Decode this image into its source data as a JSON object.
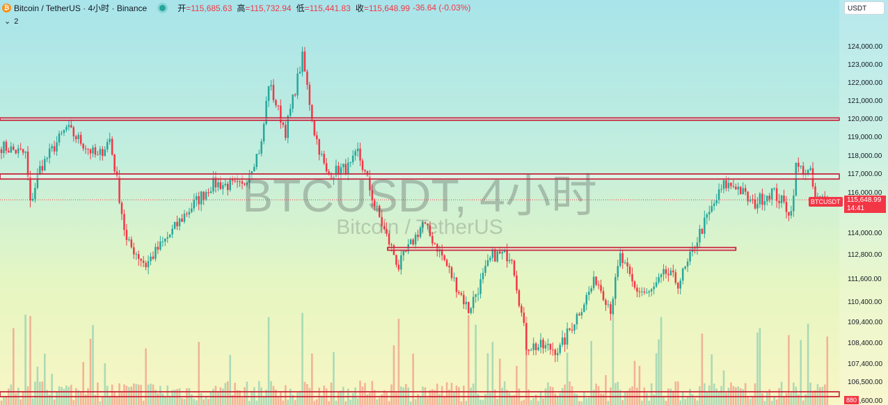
{
  "header": {
    "logo_icon": "bitcoin-icon",
    "title": "Bitcoin / TetherUS · 4小时 · Binance",
    "ohlc": [
      {
        "label": "开",
        "value": "=115,685.63"
      },
      {
        "label": "高",
        "value": "=115,732.94"
      },
      {
        "label": "低",
        "value": "=115,441.83"
      },
      {
        "label": "收",
        "value": "=115,648.99"
      },
      {
        "label": "",
        "value": "-36.64 (-0.03%)"
      }
    ]
  },
  "indicator_toggle": {
    "icon": "chevron-down-icon",
    "count": "2"
  },
  "currency": "USDT",
  "watermark": {
    "main": "BTCUSDT, 4小时",
    "sub": "Bitcoin / TetherUS"
  },
  "last_price": {
    "symbol": "BTCUSDT",
    "price": "115,648.99",
    "countdown": "14:41"
  },
  "volume_label": "880",
  "colors": {
    "up": "#26a69a",
    "down": "#f23645",
    "zone": "#c7253e"
  },
  "chart_data": {
    "type": "candlestick",
    "y_ticks": [
      {
        "label": "124,000.00",
        "v": 124000
      },
      {
        "label": "123,000.00",
        "v": 123000
      },
      {
        "label": "122,000.00",
        "v": 122000
      },
      {
        "label": "121,000.00",
        "v": 121000
      },
      {
        "label": "120,000.00",
        "v": 120000
      },
      {
        "label": "119,000.00",
        "v": 119000
      },
      {
        "label": "118,000.00",
        "v": 118000
      },
      {
        "label": "117,000.00",
        "v": 117000
      },
      {
        "label": "116,000.00",
        "v": 116000
      },
      {
        "label": "114,000.00",
        "v": 114000
      },
      {
        "label": "112,800.00",
        "v": 112800
      },
      {
        "label": "111,600.00",
        "v": 111600
      },
      {
        "label": "110,400.00",
        "v": 110400
      },
      {
        "label": "109,400.00",
        "v": 109400
      },
      {
        "label": "108,400.00",
        "v": 108400
      },
      {
        "label": "107,400.00",
        "v": 107400
      },
      {
        "label": "106,500.00",
        "v": 106500
      },
      {
        "label": "105,600.00",
        "v": 105600
      }
    ],
    "current_price": 115648.99,
    "zones": [
      {
        "from_bar": 0,
        "to_bar": 348,
        "low": 119930,
        "high": 120060
      },
      {
        "from_bar": 0,
        "to_bar": 348,
        "low": 116730,
        "high": 117000
      },
      {
        "from_bar": 161,
        "to_bar": 305,
        "low": 113050,
        "high": 113200
      }
    ],
    "path": [
      [
        0,
        118500
      ],
      [
        10,
        118100
      ],
      [
        12,
        115400
      ],
      [
        16,
        117300
      ],
      [
        27,
        119500
      ],
      [
        40,
        117900
      ],
      [
        45,
        118900
      ],
      [
        52,
        113500
      ],
      [
        60,
        112300
      ],
      [
        76,
        114900
      ],
      [
        88,
        116500
      ],
      [
        100,
        116300
      ],
      [
        108,
        118600
      ],
      [
        111,
        122000
      ],
      [
        118,
        119300
      ],
      [
        125,
        123400
      ],
      [
        130,
        119300
      ],
      [
        135,
        117000
      ],
      [
        145,
        117400
      ],
      [
        148,
        118200
      ],
      [
        155,
        115400
      ],
      [
        165,
        112200
      ],
      [
        175,
        114500
      ],
      [
        182,
        113000
      ],
      [
        194,
        110000
      ],
      [
        204,
        112800
      ],
      [
        212,
        112800
      ],
      [
        218,
        108300
      ],
      [
        232,
        108100
      ],
      [
        247,
        111600
      ],
      [
        253,
        110100
      ],
      [
        257,
        112700
      ],
      [
        263,
        111100
      ],
      [
        269,
        110800
      ],
      [
        276,
        111900
      ],
      [
        281,
        111400
      ],
      [
        285,
        112300
      ],
      [
        290,
        114000
      ],
      [
        300,
        116400
      ],
      [
        305,
        116400
      ],
      [
        312,
        115400
      ],
      [
        320,
        116100
      ],
      [
        328,
        115000
      ],
      [
        330,
        117400
      ],
      [
        336,
        117000
      ],
      [
        338,
        115600
      ],
      [
        343,
        115700
      ]
    ]
  }
}
